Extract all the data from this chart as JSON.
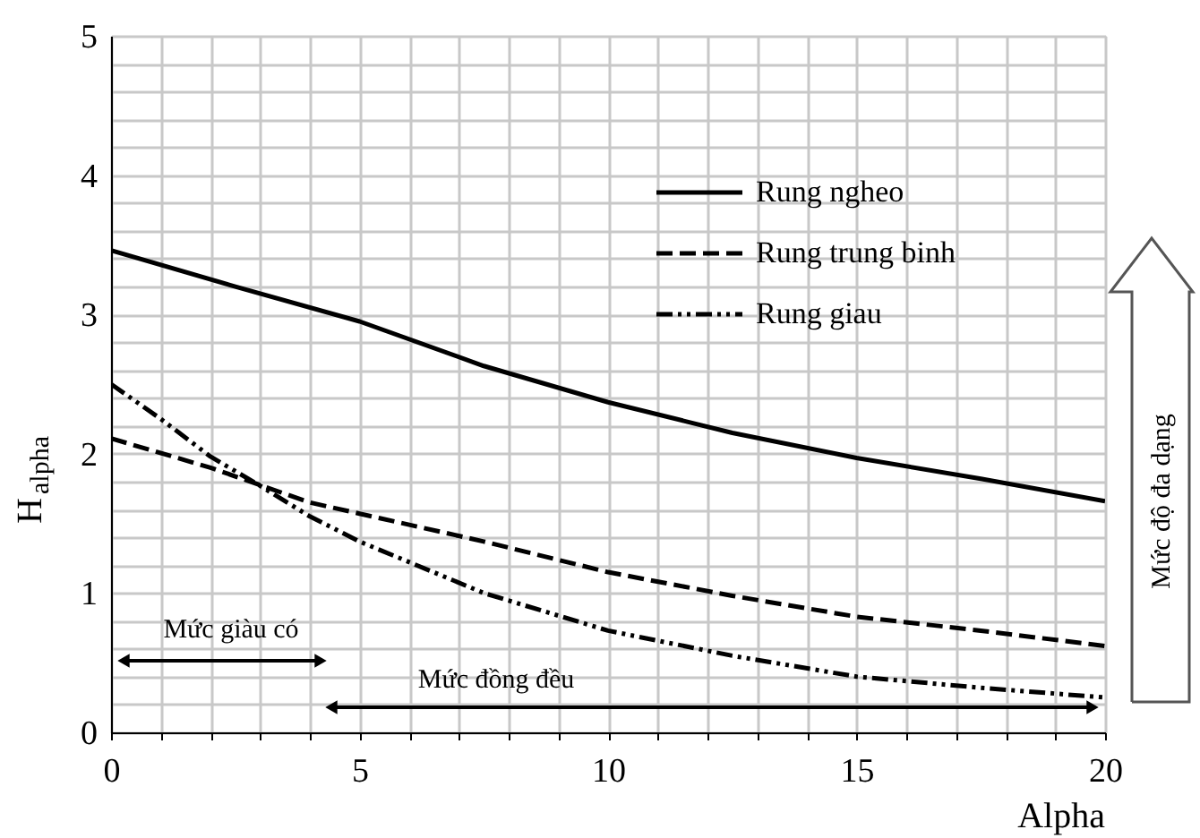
{
  "chart_data": {
    "type": "line",
    "xlabel": "Alpha",
    "ylabel": "H$_{alpha}$",
    "xlim": [
      0,
      20
    ],
    "ylim": [
      0,
      5
    ],
    "xticks": [
      0,
      {
        "value": 1,
        "label": null
      },
      {
        "value": 2,
        "label": null
      },
      {
        "value": 3,
        "label": null
      },
      {
        "value": 4,
        "label": null
      },
      5,
      {
        "value": 6,
        "label": null
      },
      {
        "value": 7,
        "label": null
      },
      {
        "value": 8,
        "label": null
      },
      {
        "value": 9,
        "label": null
      },
      10,
      {
        "value": 11,
        "label": null
      },
      {
        "value": 12,
        "label": null
      },
      {
        "value": 13,
        "label": null
      },
      {
        "value": 14,
        "label": null
      },
      15,
      {
        "value": 16,
        "label": null
      },
      {
        "value": 17,
        "label": null
      },
      {
        "value": 18,
        "label": null
      },
      {
        "value": 19,
        "label": null
      },
      20
    ],
    "yticks": [
      0,
      {
        "value": 0.2,
        "label": null
      },
      {
        "value": 0.4,
        "label": null
      },
      {
        "value": 0.6,
        "label": null
      },
      {
        "value": 0.8,
        "label": null
      },
      1,
      {
        "value": 1.2,
        "label": null
      },
      {
        "value": 1.4,
        "label": null
      },
      {
        "value": 1.6,
        "label": null
      },
      {
        "value": 1.8,
        "label": null
      },
      2,
      {
        "value": 2.2,
        "label": null
      },
      {
        "value": 2.4,
        "label": null
      },
      {
        "value": 2.6,
        "label": null
      },
      {
        "value": 2.8,
        "label": null
      },
      3,
      {
        "value": 3.2,
        "label": null
      },
      {
        "value": 3.4,
        "label": null
      },
      {
        "value": 3.6,
        "label": null
      },
      {
        "value": 3.8,
        "label": null
      },
      4,
      {
        "value": 4.2,
        "label": null
      },
      {
        "value": 4.4,
        "label": null
      },
      {
        "value": 4.6,
        "label": null
      },
      {
        "value": 4.8,
        "label": null
      },
      5
    ],
    "grid": true,
    "legend": "top right",
    "marker": "none",
    "series": [
      {
        "name": "Rung ngheo",
        "color": "#000000",
        "line_style": "solid",
        "x": [
          0,
          2.5,
          5,
          7.5,
          10,
          12.5,
          15,
          17.5,
          20
        ],
        "values": [
          3.46,
          3.2,
          2.95,
          2.63,
          2.37,
          2.15,
          1.97,
          1.82,
          1.66
        ]
      },
      {
        "name": "Rung trung binh",
        "color": "#000000",
        "line_style": "dashed",
        "x": [
          0,
          2,
          4,
          5,
          7.5,
          10,
          12.5,
          15,
          17.5,
          20
        ],
        "values": [
          2.11,
          1.9,
          1.65,
          1.57,
          1.37,
          1.15,
          0.98,
          0.83,
          0.73,
          0.62
        ]
      },
      {
        "name": "Rung giau",
        "color": "#000000",
        "line_style": "dotted",
        "x": [
          0,
          1,
          2,
          3,
          4,
          5,
          7.5,
          10,
          12.5,
          15,
          17.5,
          20
        ],
        "values": [
          2.5,
          2.25,
          1.98,
          1.77,
          1.55,
          1.37,
          1.0,
          0.73,
          0.55,
          0.4,
          0.32,
          0.25
        ]
      }
    ],
    "annotations": [
      "Mức giàu có",
      "Mức đồng đều",
      "Mức độ đa dạng"
    ]
  }
}
